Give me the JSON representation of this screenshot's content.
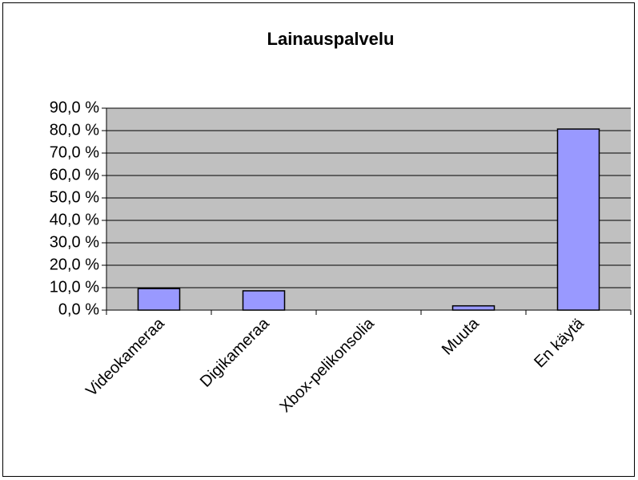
{
  "chart_data": {
    "type": "bar",
    "title": "Lainauspalvelu",
    "categories": [
      "Videokameraa",
      "Digikameraa",
      "Xbox-pelikonsolia",
      "Muuta",
      "En käytä"
    ],
    "values": [
      9.6,
      8.6,
      0,
      1.9,
      80.7
    ],
    "color": "#9999ff",
    "ylim": [
      0,
      90
    ],
    "yticks": [
      {
        "value": 0,
        "label": "0,0 %"
      },
      {
        "value": 10,
        "label": "10,0 %"
      },
      {
        "value": 20,
        "label": "20,0 %"
      },
      {
        "value": 30,
        "label": "30,0 %"
      },
      {
        "value": 40,
        "label": "40,0 %"
      },
      {
        "value": 50,
        "label": "50,0 %"
      },
      {
        "value": 60,
        "label": "60,0 %"
      },
      {
        "value": 70,
        "label": "70,0 %"
      },
      {
        "value": 80,
        "label": "80,0 %"
      },
      {
        "value": 90,
        "label": "90,0 %"
      }
    ],
    "grid": true
  }
}
